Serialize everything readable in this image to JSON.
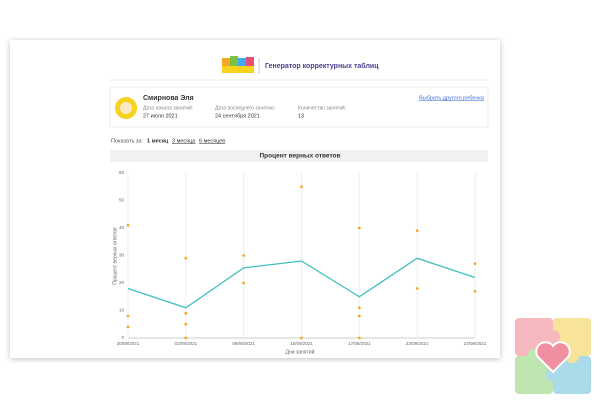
{
  "header": {
    "title": "Генератор корректурных таблиц"
  },
  "profile": {
    "name": "Смирнова Эля",
    "change_link": "Выбрать другого ребенка",
    "fields": [
      {
        "label": "Дата начала занятий:",
        "value": "27 июля 2021"
      },
      {
        "label": "Дата последнего занятия:",
        "value": "24 сентября 2021"
      },
      {
        "label": "Количество занятий:",
        "value": "13"
      }
    ]
  },
  "period": {
    "label": "Показать за:",
    "options": [
      "1 месяц",
      "3 месяца",
      "6 месяцев"
    ]
  },
  "chart_data": {
    "type": "line",
    "title": "Процент верных ответов",
    "x_label": "Дни занятий",
    "y_label": "Процент верных ответов",
    "categories": [
      "30/08/2021",
      "03/09/2021",
      "09/09/2021",
      "15/09/2021",
      "17/09/2021",
      "23/09/2021",
      "24/09/2021"
    ],
    "series": [
      {
        "color": "#3fbfbf",
        "values": [
          18,
          11,
          25.5,
          28,
          15,
          29,
          22
        ]
      }
    ],
    "sessions": {
      "color": "#f5a623",
      "values": [
        [
          41,
          8,
          4
        ],
        [
          29,
          9,
          5,
          0
        ],
        [
          30,
          20
        ],
        [
          55,
          0
        ],
        [
          40,
          11,
          8,
          0
        ],
        [
          39,
          18
        ],
        [
          27,
          17
        ]
      ]
    },
    "ylim": [
      0,
      60
    ],
    "yticks": [
      0,
      10,
      20,
      30,
      40,
      50,
      60
    ],
    "grid": true
  }
}
